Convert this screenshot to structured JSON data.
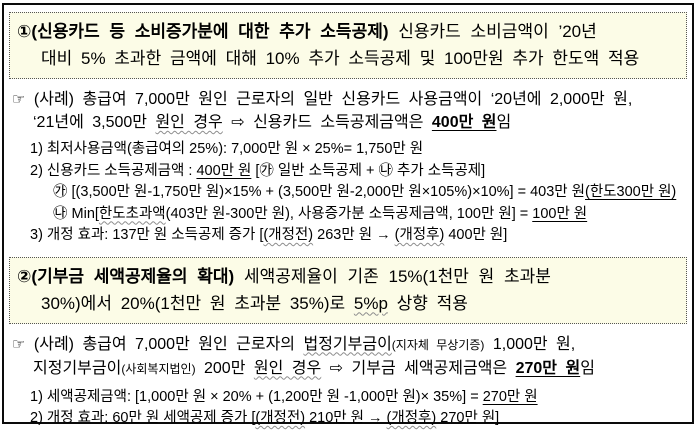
{
  "page": {
    "background_color": "#ffffff",
    "frame_border_color": "#0a0a0a",
    "notice_box_bg_color": "#fcfce7",
    "notice_box_border_color": "#555555"
  },
  "box1": {
    "number": "①",
    "title_bold": "(신용카드 등 소비증가분에 대한 추가 소득공제)",
    "line1_rest": " 신용카드 소비금액이 ’20년",
    "line2": "대비 5% 초과한 금액에 대해 10% 추가 소득공제 및 100만원 추가 한도액 적용"
  },
  "case1": {
    "hand_icon": "☞",
    "line1": " (사례) 총급여 7,000만 원인 근로자의 일반 신용카드 사용금액이 ‘20년에 2,000만 원,",
    "line2_pre": "‘21년에 3,500만 ",
    "line2_wavy": "원인 경우",
    "arrow": " ⇨ ",
    "line2_mid": "신용카드 소득공제금액은 ",
    "line2_strong": "400만 원",
    "line2_suffix": "임"
  },
  "sec1_items": {
    "i1": "1) 최저사용금액(총급여의 25%): 7,000만 원 × 25%= 1,750만 원",
    "i2_pre": "2) 신용카드 소득공제금액 : ",
    "i2_u": "400만 원",
    "i2_post": " [㉮ 일반 소득공제 + ㉯ 추가 소득공제]",
    "i2a_pre": "㉮ [(3,500만 원-1,750만 원)×15% + (3,500만 원-2,000만 원×105%)×10%] = 403만 원",
    "i2a_u": "(한도300만 원)",
    "i2b_pre": "㉯ Min[",
    "i2b_wavy": "한도초과액",
    "i2b_mid": "(403만 원-300만 원), 사용증가분 소득공제금액, 100만 원] = ",
    "i2b_u": "100만 원",
    "i3_pre": "3) 개정 효과: 137만 원 소득공제 증가 [",
    "i3_wavy1": "(개정전)",
    "i3_mid": " 263만 원 → ",
    "i3_wavy2": "(개정후)",
    "i3_post": " 400만 원]"
  },
  "box2": {
    "number": "②",
    "title_bold": "(기부금 세액공제율의 확대)",
    "line1_rest": " 세액공제율이 기존 15%(1천만 원 초과분",
    "line2_pre": "30%)에서 20%(1천만 원 초과분 35%)로 ",
    "line2_wavy": "5%p",
    "line2_post": " 상향 적용"
  },
  "case2": {
    "hand_icon": "☞",
    "line1_pre": " (사례) 총급여 7,000만 원인 근로자의 ",
    "line1_wavy": "법정기부금이",
    "line1_small": "(지자체 무상기증)",
    "line1_post": " 1,000만 원,",
    "line2_pre": "지정기부금이",
    "line2_small": "(사회복지법인)",
    "line2_mid": " 200만 ",
    "line2_wavy": "원인 경우",
    "arrow": " ⇨ ",
    "line2_mid2": "기부금 세액공제금액은 ",
    "line2_strong": "270만 원",
    "line2_suffix": "임"
  },
  "sec2_items": {
    "i1_pre": "1) 세액공제금액: [1,000만 원 × 20% + (1,200만 원 -1,000만 원)× 35%] = ",
    "i1_u": "270만 원",
    "i2_pre": "2) 개정 효과: 60만 원 세액공제 증가 [",
    "i2_wavy1": "(개정전)",
    "i2_mid": " 210만 원 → ",
    "i2_wavy2": "(개정후)",
    "i2_post": " 270만 원]"
  }
}
